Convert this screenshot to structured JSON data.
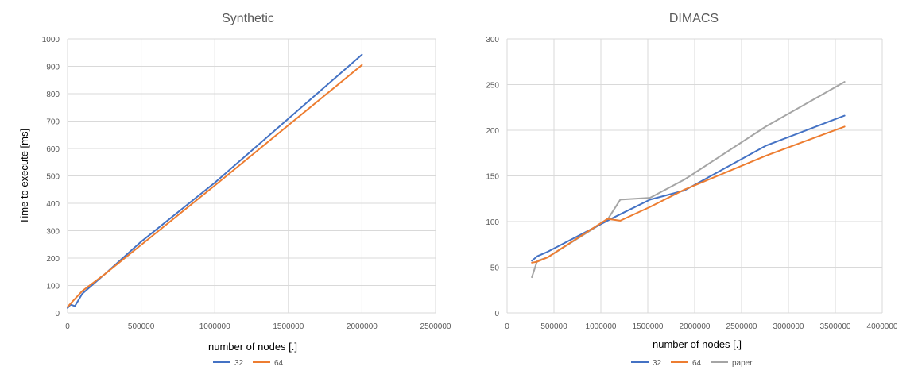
{
  "chart_data": [
    {
      "type": "line",
      "title": "Synthetic",
      "xlabel": "number of nodes [.]",
      "ylabel": "Time to execute [ms]",
      "xlim": [
        0,
        2500000
      ],
      "ylim": [
        0,
        1000
      ],
      "x_ticks": [
        0,
        500000,
        1000000,
        1500000,
        2000000,
        2500000
      ],
      "y_ticks": [
        0,
        100,
        200,
        300,
        400,
        500,
        600,
        700,
        800,
        900,
        1000
      ],
      "grid": true,
      "legend_position": "bottom",
      "series": [
        {
          "name": "32",
          "color": "#4472C4",
          "points": [
            [
              0,
              18
            ],
            [
              20000,
              30
            ],
            [
              50000,
              25
            ],
            [
              100000,
              70
            ],
            [
              250000,
              140
            ],
            [
              500000,
              260
            ],
            [
              1000000,
              475
            ],
            [
              2000000,
              943
            ]
          ]
        },
        {
          "name": "64",
          "color": "#ED7D31",
          "points": [
            [
              0,
              22
            ],
            [
              100000,
              80
            ],
            [
              250000,
              140
            ],
            [
              500000,
              248
            ],
            [
              1000000,
              465
            ],
            [
              2000000,
              905
            ]
          ]
        }
      ]
    },
    {
      "type": "line",
      "title": "DIMACS",
      "xlabel": "number of nodes [.]",
      "ylabel": "",
      "xlim": [
        0,
        4000000
      ],
      "ylim": [
        0,
        300
      ],
      "x_ticks": [
        0,
        500000,
        1000000,
        1500000,
        2000000,
        2500000,
        3000000,
        3500000,
        4000000
      ],
      "y_ticks": [
        0,
        50,
        100,
        150,
        200,
        250,
        300
      ],
      "grid": true,
      "legend_position": "bottom",
      "series": [
        {
          "name": "32",
          "color": "#4472C4",
          "points": [
            [
              264000,
              57
            ],
            [
              321000,
              62
            ],
            [
              435000,
              67
            ],
            [
              1070000,
              101
            ],
            [
              1207000,
              108
            ],
            [
              1524000,
              124
            ],
            [
              1891000,
              134
            ],
            [
              2758000,
              183
            ],
            [
              3598000,
              216
            ]
          ]
        },
        {
          "name": "64",
          "color": "#ED7D31",
          "points": [
            [
              264000,
              55
            ],
            [
              321000,
              56
            ],
            [
              435000,
              61
            ],
            [
              1070000,
              103
            ],
            [
              1207000,
              101
            ],
            [
              1524000,
              116
            ],
            [
              1891000,
              135
            ],
            [
              2758000,
              172
            ],
            [
              3598000,
              204
            ]
          ]
        },
        {
          "name": "paper",
          "color": "#A5A5A5",
          "points": [
            [
              264000,
              39
            ],
            [
              321000,
              57
            ],
            [
              435000,
              61
            ],
            [
              1070000,
              102
            ],
            [
              1207000,
              124
            ],
            [
              1524000,
              126
            ],
            [
              1891000,
              146
            ],
            [
              2758000,
              204
            ],
            [
              3598000,
              253
            ]
          ]
        }
      ]
    }
  ]
}
